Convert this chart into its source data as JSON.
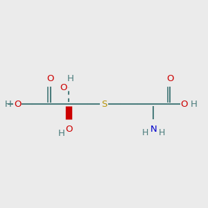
{
  "bg_color": "#ebebeb",
  "bond_color": "#4a7c7c",
  "o_color": "#cc0000",
  "n_color": "#0000cc",
  "s_color": "#b8960c",
  "h_color": "#4a7c7c",
  "lw": 1.5,
  "fs": 9.5,
  "fig_w": 3.0,
  "fig_h": 3.0,
  "dpi": 100,
  "xlim": [
    0,
    10
  ],
  "ylim": [
    1,
    9
  ]
}
